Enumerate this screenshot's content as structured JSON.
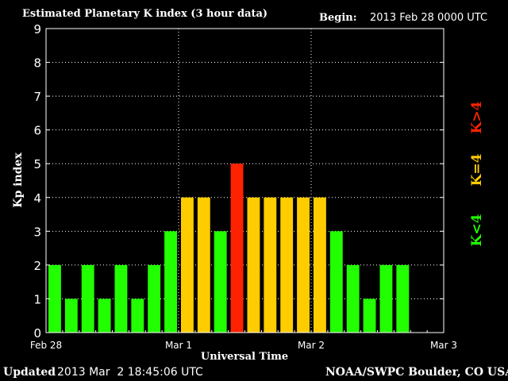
{
  "header": {
    "title": "Estimated Planetary K index (3 hour data)",
    "begin_label": "Begin:",
    "begin_value": "2013 Feb 28 0000 UTC"
  },
  "footer": {
    "updated_label": "Updated",
    "updated_value": "2013 Mar  2 18:45:06 UTC",
    "source": "NOAA/SWPC Boulder, CO USA"
  },
  "legend": {
    "below": "K<4",
    "equal": "K=4",
    "above": "K>4"
  },
  "colors": {
    "below": "#22ff00",
    "equal": "#ffcc00",
    "above": "#ff2200",
    "background": "#000000",
    "axis": "#ffffff"
  },
  "chart_data": {
    "type": "bar",
    "title": "Estimated Planetary K index (3 hour data)",
    "xlabel": "Universal Time",
    "ylabel": "Kp index",
    "ylim": [
      0,
      9
    ],
    "yticks": [
      "0",
      "1",
      "2",
      "3",
      "4",
      "5",
      "6",
      "7",
      "8",
      "9"
    ],
    "xticks": [
      "Feb 28",
      "Mar 1",
      "Mar 2",
      "Mar 3"
    ],
    "bar_interval": "3 hour",
    "values": [
      2,
      1,
      2,
      1,
      2,
      1,
      2,
      3,
      4,
      4,
      3,
      5,
      4,
      4,
      4,
      4,
      4,
      3,
      2,
      1,
      2,
      2
    ],
    "grid": true,
    "legend_placement": "right"
  }
}
